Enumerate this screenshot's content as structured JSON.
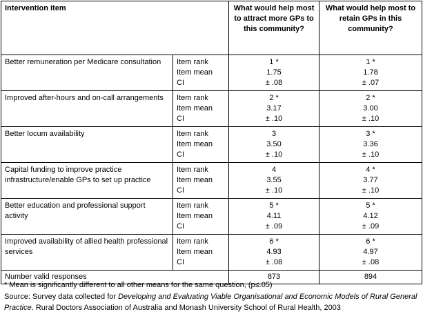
{
  "table": {
    "headers": {
      "item": "Intervention item",
      "attract": "What would help most to attract more GPs to this community?",
      "retain": "What would help most to retain GPs in this community?"
    },
    "stat_labels": [
      "Item rank",
      "Item mean",
      "CI"
    ],
    "rows": [
      {
        "item": "Better remuneration per Medicare consultation",
        "attract": [
          "1 *",
          "1.75",
          "± .08"
        ],
        "retain": [
          "1 *",
          "1.78",
          "± .07"
        ]
      },
      {
        "item": "Improved after-hours and on-call arrangements",
        "attract": [
          "2 *",
          "3.17",
          "± .10"
        ],
        "retain": [
          "2 *",
          "3.00",
          "± .10"
        ]
      },
      {
        "item": "Better locum availability",
        "attract": [
          "3",
          "3.50",
          "± .10"
        ],
        "retain": [
          "3 *",
          "3.36",
          "± .10"
        ]
      },
      {
        "item": "Capital funding to improve practice infrastructure/enable GPs to set up practice",
        "attract": [
          "4",
          "3.55",
          "± .10"
        ],
        "retain": [
          "4 *",
          "3.77",
          "± .10"
        ]
      },
      {
        "item": "Better education and professional support activity",
        "attract": [
          "5 *",
          "4.11",
          "± .09"
        ],
        "retain": [
          "5 *",
          "4.12",
          "± .09"
        ]
      },
      {
        "item": "Improved availability of allied health professional services",
        "attract": [
          "6 *",
          "4.93",
          "± .08"
        ],
        "retain": [
          "6 *",
          "4.97",
          "± .08"
        ]
      }
    ],
    "total": {
      "label": "Number valid responses",
      "attract": "873",
      "retain": "894"
    }
  },
  "notes": {
    "footnote": "* Mean is significantly different to all other means for the same question, (p≤.05)",
    "source_prefix": "Source: Survey data collected for ",
    "source_title": "Developing and Evaluating Viable Organisational and Economic Models of Rural General Practice",
    "source_suffix": ". Rural Doctors Association of Australia and Monash University School of Rural Health, 2003"
  }
}
